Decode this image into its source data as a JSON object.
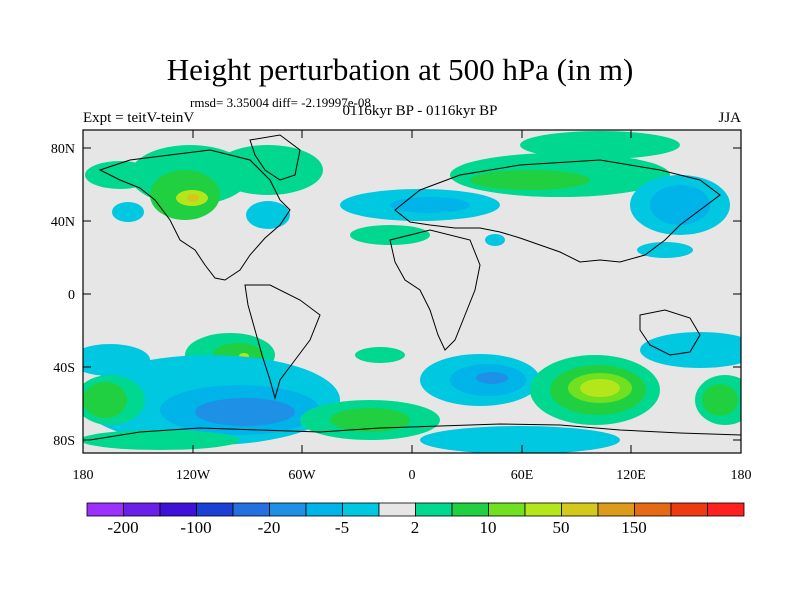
{
  "title": "Height perturbation at 500 hPa (in m)",
  "stats_text": "rmsd= 3.35004 diff= -2.19997e-08",
  "left_string": "Expt = teitV-teinV",
  "center_string": "0116kyr BP - 0116kyr BP",
  "right_string": "JJA",
  "lat_ticks": [
    "80N",
    "40N",
    "0",
    "40S",
    "80S"
  ],
  "lon_ticks": [
    "180",
    "120W",
    "60W",
    "0",
    "60E",
    "120E",
    "180"
  ],
  "colorbar": {
    "colors": [
      "#9b30ff",
      "#6a20e8",
      "#3f10d8",
      "#1c40d6",
      "#2470e0",
      "#1e90e6",
      "#00b4ea",
      "#00c8e0",
      "#e6e6e6",
      "#00d890",
      "#20d040",
      "#70e020",
      "#b4e61c",
      "#d4c81c",
      "#dc9c1a",
      "#e66a14",
      "#ee3a10",
      "#ff2020"
    ],
    "labels": [
      "-200",
      "-100",
      "-20",
      "-5",
      "2",
      "10",
      "50",
      "150"
    ]
  }
}
